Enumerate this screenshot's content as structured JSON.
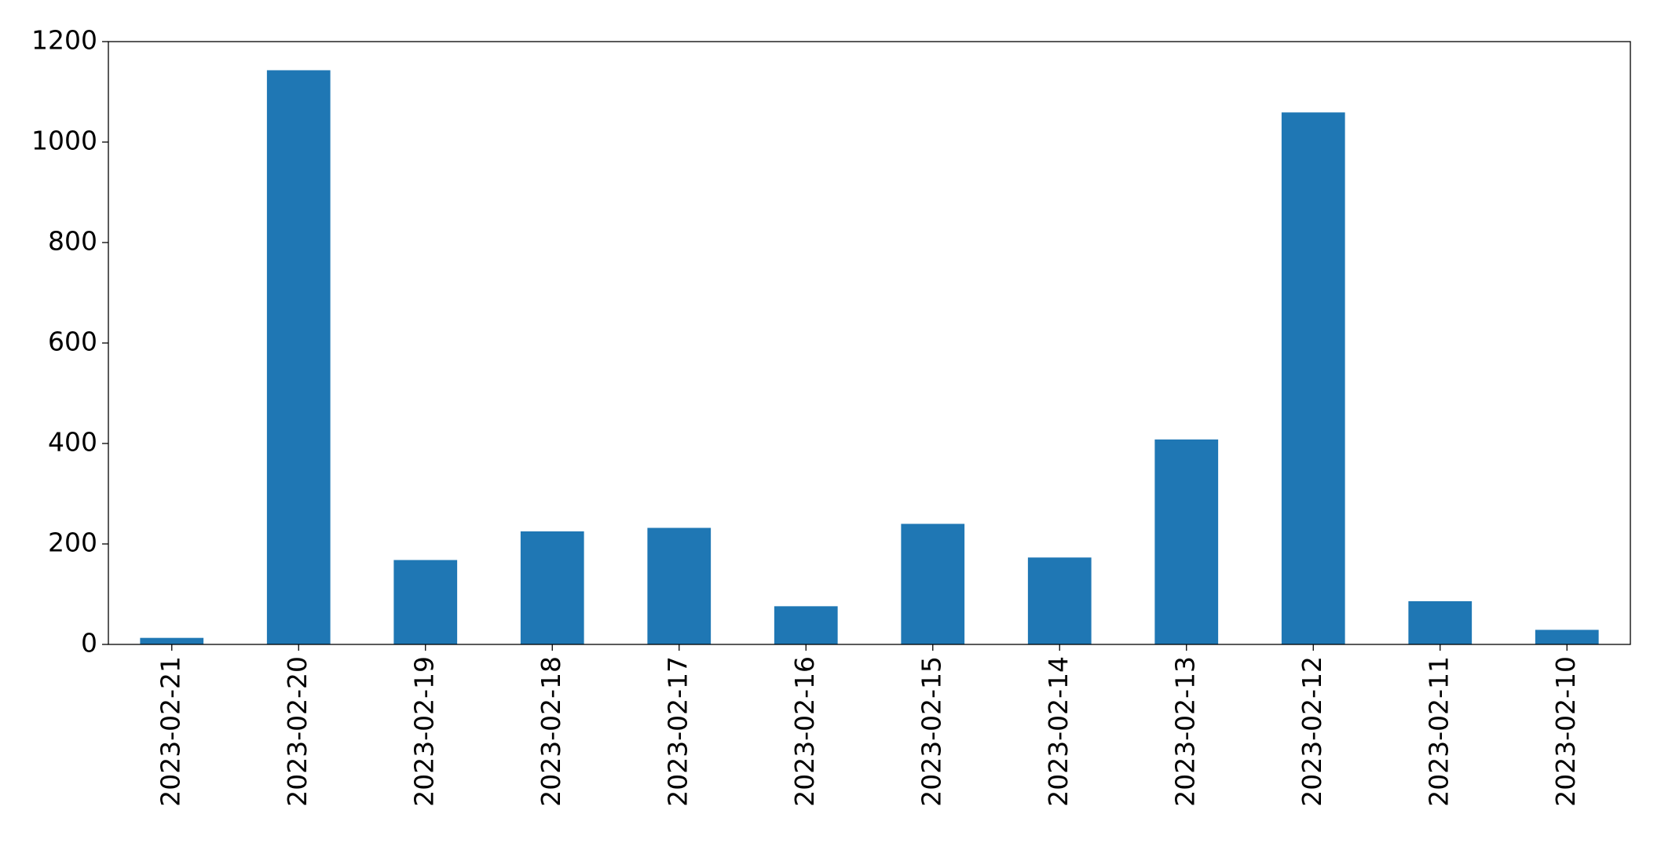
{
  "chart_data": {
    "type": "bar",
    "categories": [
      "2023-02-21",
      "2023-02-20",
      "2023-02-19",
      "2023-02-18",
      "2023-02-17",
      "2023-02-16",
      "2023-02-15",
      "2023-02-14",
      "2023-02-13",
      "2023-02-12",
      "2023-02-11",
      "2023-02-10"
    ],
    "values": [
      13,
      1143,
      168,
      225,
      232,
      76,
      240,
      173,
      408,
      1059,
      86,
      29
    ],
    "color": "#1f77b4",
    "ylim": [
      0,
      1200
    ],
    "yticks": [
      0,
      200,
      400,
      600,
      800,
      1000,
      1200
    ],
    "grid": false
  }
}
